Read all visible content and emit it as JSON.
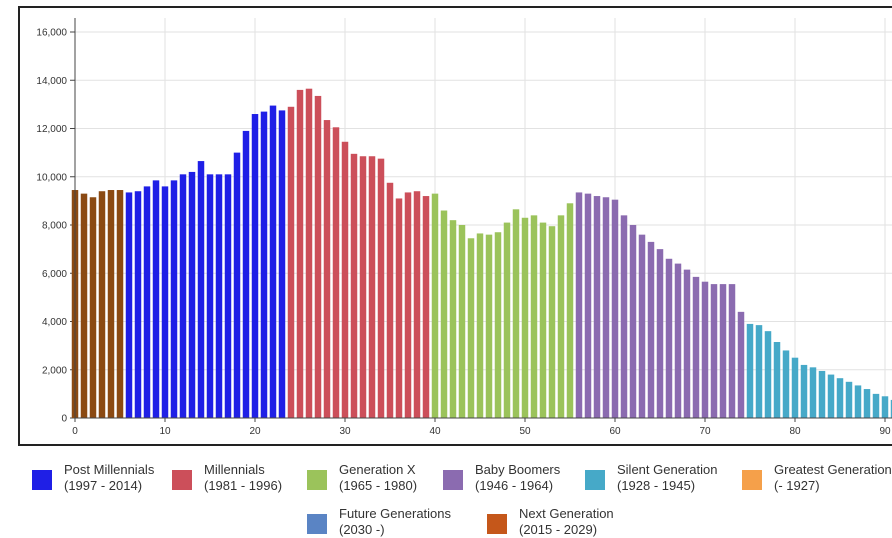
{
  "chart_data": {
    "type": "bar",
    "xlabel": "",
    "ylabel": "",
    "xlim": [
      0,
      90
    ],
    "ylim": [
      0,
      16000
    ],
    "x_ticks": [
      0,
      10,
      20,
      30,
      40,
      50,
      60,
      70,
      80,
      90
    ],
    "x_tick_labels": [
      "0",
      "10",
      "20",
      "30",
      "40",
      "50",
      "60",
      "70",
      "80",
      "90"
    ],
    "y_ticks": [
      0,
      2000,
      4000,
      6000,
      8000,
      10000,
      12000,
      14000,
      16000
    ],
    "y_tick_labels": [
      "0",
      "2,000",
      "4,000",
      "6,000",
      "8,000",
      "10,000",
      "12,000",
      "14,000",
      "16,000"
    ],
    "grid": true,
    "legend_position": "bottom",
    "series": [
      {
        "name": "Next Generation (2015 - 2029)",
        "color": "#8B4A13",
        "x": [
          0,
          1,
          2,
          3,
          4,
          5
        ],
        "values": [
          9450,
          9300,
          9150,
          9400,
          9450,
          9450
        ]
      },
      {
        "name": "Post Millennials (1997 - 2014)",
        "color": "#1F1FE6",
        "x": [
          6,
          7,
          8,
          9,
          10,
          11,
          12,
          13,
          14,
          15,
          16,
          17,
          18,
          19,
          20,
          21,
          22,
          23
        ],
        "values": [
          9350,
          9400,
          9600,
          9850,
          9600,
          9850,
          10100,
          10200,
          10650,
          10100,
          10100,
          10100,
          11000,
          11900,
          12600,
          12700,
          12950,
          12750
        ]
      },
      {
        "name": "Millennials (1981 - 1996)",
        "color": "#CC4F5A",
        "x": [
          24,
          25,
          26,
          27,
          28,
          29,
          30,
          31,
          32,
          33,
          34,
          35,
          36,
          37,
          38,
          39
        ],
        "values": [
          12900,
          13600,
          13650,
          13350,
          12350,
          12050,
          11450,
          10950,
          10850,
          10850,
          10750,
          9750,
          9100,
          9350,
          9400,
          9200
        ]
      },
      {
        "name": "Generation X (1965 - 1980)",
        "color": "#9BC35B",
        "x": [
          40,
          41,
          42,
          43,
          44,
          45,
          46,
          47,
          48,
          49,
          50,
          51,
          52,
          53,
          54,
          55
        ],
        "values": [
          9300,
          8600,
          8200,
          8000,
          7450,
          7650,
          7600,
          7700,
          8100,
          8650,
          8300,
          8400,
          8100,
          7950,
          8400,
          8900
        ]
      },
      {
        "name": "Baby Boomers (1946 - 1964)",
        "color": "#8B6BB0",
        "x": [
          56,
          57,
          58,
          59,
          60,
          61,
          62,
          63,
          64,
          65,
          66,
          67,
          68,
          69,
          70,
          71,
          72,
          73,
          74
        ],
        "values": [
          9350,
          9300,
          9200,
          9150,
          9050,
          8400,
          8000,
          7600,
          7300,
          7000,
          6600,
          6400,
          6150,
          5850,
          5650,
          5550,
          5550,
          5550,
          4400
        ]
      },
      {
        "name": "Silent Generation (1928 - 1945)",
        "color": "#46A9C8",
        "x": [
          75,
          76,
          77,
          78,
          79,
          80,
          81,
          82,
          83,
          84,
          85,
          86,
          87,
          88,
          89,
          90,
          91
        ],
        "values": [
          3900,
          3850,
          3600,
          3150,
          2800,
          2500,
          2200,
          2100,
          1950,
          1800,
          1650,
          1500,
          1350,
          1200,
          1000,
          900,
          750
        ]
      }
    ]
  },
  "legend": {
    "items": [
      {
        "name": "Post Millennials",
        "range": "(1997 - 2014)",
        "color": "#1F1FE6"
      },
      {
        "name": "Millennials",
        "range": "(1981 - 1996)",
        "color": "#CC4F5A"
      },
      {
        "name": "Generation X",
        "range": "(1965 - 1980)",
        "color": "#9BC35B"
      },
      {
        "name": "Baby Boomers",
        "range": "(1946 - 1964)",
        "color": "#8B6BB0"
      },
      {
        "name": "Silent Generation",
        "range": "(1928 - 1945)",
        "color": "#46A9C8"
      },
      {
        "name": "Greatest Generation",
        "range": "(- 1927)",
        "color": "#F5A04A"
      },
      {
        "name": "Future Generations",
        "range": "(2030 -)",
        "color": "#5A84C4"
      },
      {
        "name": "Next Generation",
        "range": "(2015 - 2029)",
        "color": "#C5571A"
      }
    ]
  }
}
